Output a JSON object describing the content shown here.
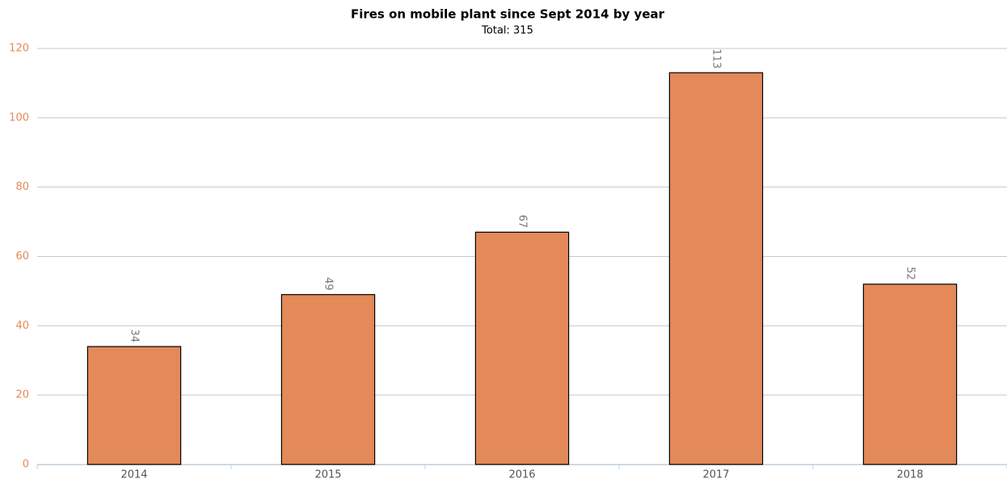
{
  "chart_data": {
    "type": "bar",
    "title": "Fires on mobile plant since Sept 2014 by year",
    "subtitle": "Total: 315",
    "categories": [
      "2014",
      "2015",
      "2016",
      "2017",
      "2018"
    ],
    "values": [
      34,
      49,
      67,
      113,
      52
    ],
    "color": "#e3895a",
    "ylim": [
      0,
      120
    ],
    "yticks": [
      0,
      20,
      40,
      60,
      80,
      100,
      120
    ],
    "grid": true,
    "data_labels": true
  }
}
